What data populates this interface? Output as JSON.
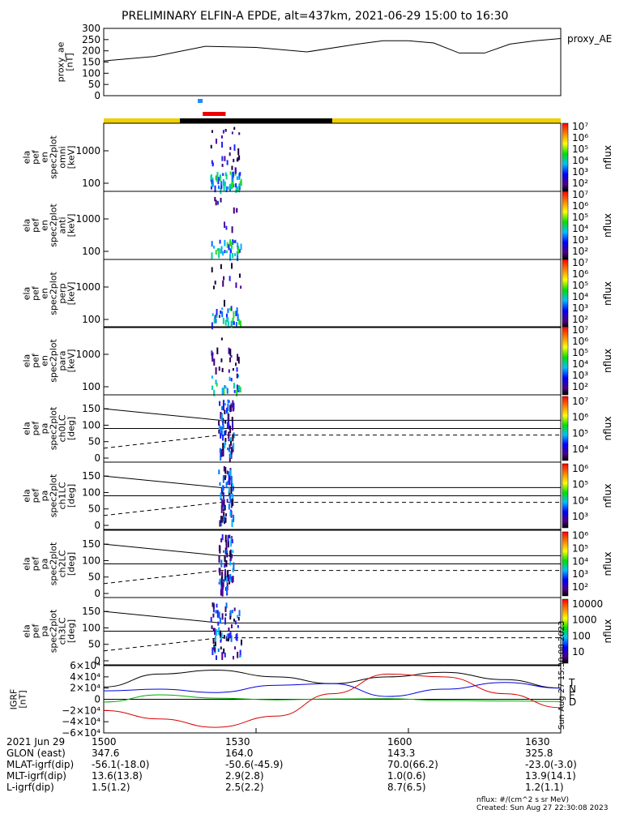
{
  "title": "PRELIMINARY ELFIN-A EPDE, alt=437km, 2021-06-29 15:00 to 16:30",
  "proxy_panel": {
    "ylabel": [
      "proxy_ae",
      "[nT]"
    ],
    "label": "proxy_AE"
  },
  "spec_panels": [
    {
      "ylabel": [
        "ela",
        "pef",
        "en",
        "spec2plot",
        "omni",
        "[keV]"
      ]
    },
    {
      "ylabel": [
        "ela",
        "pef",
        "en",
        "spec2plot",
        "anti",
        "[keV]"
      ]
    },
    {
      "ylabel": [
        "ela",
        "pef",
        "en",
        "spec2plot",
        "perp",
        "[keV]"
      ]
    },
    {
      "ylabel": [
        "ela",
        "pef",
        "en",
        "spec2plot",
        "para",
        "[keV]"
      ]
    }
  ],
  "pa_panels": [
    {
      "ylabel": [
        "ela",
        "pef",
        "pa",
        "spec2plot",
        "ch0LC",
        "[deg]"
      ]
    },
    {
      "ylabel": [
        "ela",
        "pef",
        "pa",
        "spec2plot",
        "ch1LC",
        "[deg]"
      ]
    },
    {
      "ylabel": [
        "ela",
        "pef",
        "pa",
        "spec2plot",
        "ch2LC",
        "[deg]"
      ]
    },
    {
      "ylabel": [
        "ela",
        "pef",
        "pa",
        "spec2plot",
        "ch3LC",
        "[deg]"
      ]
    }
  ],
  "colorbar": {
    "label": "nflux",
    "spec_ticks": [
      "10⁷",
      "10⁶",
      "10⁵",
      "10⁴",
      "10³",
      "10²"
    ],
    "pa_ticks": [
      [
        "10⁷",
        "10⁶",
        "10⁵",
        "10⁴"
      ],
      [
        "10⁶",
        "10⁵",
        "10⁴",
        "10³"
      ],
      [
        "10⁶",
        "10⁵",
        "10⁴",
        "10³",
        "10²"
      ],
      [
        "10000",
        "1000",
        "100",
        "10"
      ]
    ]
  },
  "igrf_panel": {
    "ylabel": [
      "IGRF",
      "[nT]"
    ],
    "legend": [
      "T",
      "N",
      "E",
      "D"
    ],
    "legend_colors": [
      "#000000",
      "#0000dd",
      "#00aa00",
      "#dd0000"
    ],
    "side_text": "Sun Aug 27 15:30:08 2023"
  },
  "footer": {
    "rows": [
      [
        "2021 Jun 29",
        "1500",
        "1530",
        "1600",
        "1630"
      ],
      [
        "GLON (east)",
        "347.6",
        "164.0",
        "143.3",
        "325.8"
      ],
      [
        "MLAT-igrf(dip)",
        "-56.1(-18.0)",
        "-50.6(-45.9)",
        "70.0(66.2)",
        "-23.0(-3.0)"
      ],
      [
        "MLT-igrf(dip)",
        "13.6(13.8)",
        "2.9(2.8)",
        "1.0(0.6)",
        "13.9(14.1)"
      ],
      [
        "L-igrf(dip)",
        "1.5(1.2)",
        "2.5(2.2)",
        "8.7(6.5)",
        "1.2(1.1)"
      ]
    ],
    "unit_note": "nflux: #/(cm^2 s sr MeV)",
    "created": "Created: Sun Aug 27 22:30:08 2023"
  },
  "chart_data": [
    {
      "type": "line",
      "name": "proxy_AE",
      "x_minutes": [
        0,
        10,
        20,
        30,
        40,
        50,
        55,
        60,
        65,
        70,
        75,
        80,
        85,
        90
      ],
      "values": [
        155,
        175,
        220,
        215,
        195,
        230,
        245,
        245,
        235,
        190,
        190,
        230,
        245,
        255
      ],
      "ylim": [
        0,
        300
      ],
      "yticks": [
        0,
        50,
        100,
        150,
        200,
        250,
        300
      ],
      "xlim": [
        0,
        90
      ]
    },
    {
      "type": "heatmap",
      "name": "energy spectrograms",
      "yscale": "log",
      "yticks": [
        100,
        1000
      ],
      "ytick_labels": [
        "100",
        "1000"
      ],
      "active_interval_minutes": [
        21,
        27
      ]
    },
    {
      "type": "heatmap",
      "name": "pitch-angle spectrograms",
      "ylim": [
        0,
        180
      ],
      "yticks": [
        0,
        50,
        100,
        150
      ],
      "loss_cone_lines": {
        "solid_upper": 115,
        "solid_lower": 90,
        "dashed_after": 70
      }
    },
    {
      "type": "line",
      "name": "IGRF",
      "ylim": [
        -60000,
        60000
      ],
      "yticks": [
        -60000,
        -40000,
        -20000,
        0,
        20000,
        40000,
        60000
      ],
      "ytick_labels": [
        "−6×10⁴",
        "−4×10⁴",
        "−2×10⁴",
        "0",
        "2×10⁴",
        "4×10⁴",
        "6×10⁴"
      ],
      "series": [
        {
          "name": "T",
          "values": [
            22000,
            45000,
            52000,
            40000,
            28000,
            40000,
            48000,
            35000,
            20000
          ]
        },
        {
          "name": "N",
          "values": [
            15000,
            18000,
            12000,
            25000,
            28000,
            5000,
            18000,
            30000,
            20000
          ]
        },
        {
          "name": "E",
          "values": [
            -5000,
            8000,
            2000,
            -1000,
            500,
            1000,
            -2000,
            -3000,
            -4000
          ]
        },
        {
          "name": "D",
          "values": [
            -20000,
            -35000,
            -50000,
            -30000,
            10000,
            45000,
            40000,
            10000,
            -15000
          ]
        }
      ],
      "x_minutes": [
        0,
        11,
        22,
        34,
        45,
        56,
        67,
        79,
        90
      ]
    }
  ],
  "orbit_bar": {
    "segments": [
      {
        "from": 0,
        "to": 15,
        "color": "#f0d000"
      },
      {
        "from": 15,
        "to": 45,
        "color": "#000000"
      },
      {
        "from": 45,
        "to": 90,
        "color": "#f0d000"
      }
    ],
    "red_interval": [
      19.5,
      24
    ],
    "blue_marker": 19
  }
}
